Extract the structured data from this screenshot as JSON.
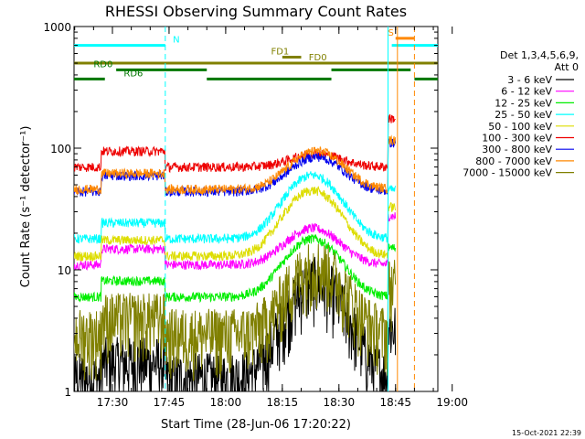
{
  "chart_data": {
    "type": "line",
    "title": "RHESSI Observing Summary Count Rates",
    "xlabel": "Start Time (28-Jun-06 17:20:22)",
    "ylabel": "Count Rate (s⁻¹ detector⁻¹)",
    "yscale": "log",
    "ylim": [
      1,
      1000
    ],
    "xlim_minutes_after_1720": [
      0,
      100
    ],
    "x_tick_labels": [
      "17:30",
      "17:45",
      "18:00",
      "18:15",
      "18:30",
      "18:45",
      "19:00"
    ],
    "x_tick_values_min": [
      10,
      25,
      40,
      55,
      70,
      85,
      100
    ],
    "y_tick_labels": [
      "1",
      "10",
      "100",
      "1000"
    ],
    "y_tick_values": [
      1,
      10,
      100,
      1000
    ],
    "legend_title": [
      "Det 1,3,4,5,6,9,",
      "Att 0"
    ],
    "timestamp": "15-Oct-2021 22:39",
    "series": [
      {
        "name": "3 - 6 keV",
        "color": "#000000",
        "peak_time": 64,
        "peak": 8,
        "base": 1.3
      },
      {
        "name": "6 - 12 keV",
        "color": "#ff00ff",
        "peak_time": 63,
        "peak": 22,
        "base": 11
      },
      {
        "name": "12 - 25 keV",
        "color": "#00ee00",
        "peak_time": 63,
        "peak": 18,
        "base": 6
      },
      {
        "name": "25 - 50 keV",
        "color": "#00ffff",
        "peak_time": 63,
        "peak": 60,
        "base": 18
      },
      {
        "name": "50 - 100 keV",
        "color": "#dddd00",
        "peak_time": 63,
        "peak": 45,
        "base": 13
      },
      {
        "name": "100 - 300 keV",
        "color": "#ee0000",
        "peak_time": 64,
        "peak": 90,
        "base": 70
      },
      {
        "name": "300 - 800 keV",
        "color": "#0000ee",
        "peak_time": 64,
        "peak": 85,
        "base": 44
      },
      {
        "name": "800 - 7000 keV",
        "color": "#ff8800",
        "peak_time": 64,
        "peak": 95,
        "base": 46
      },
      {
        "name": "7000 - 15000 keV",
        "color": "#808000",
        "peak_time": 64,
        "peak": 11,
        "base": 3
      }
    ],
    "flag_bars": [
      {
        "label": "N",
        "color": "#00ffff",
        "value": 700,
        "segments": [
          [
            -2,
            24
          ],
          [
            84,
            98
          ]
        ],
        "label_at": 26
      },
      {
        "label": "S",
        "color": "#ff8800",
        "value": 800,
        "segments": [
          [
            85,
            90
          ]
        ],
        "label_at": 83
      },
      {
        "label": "FD1",
        "color": "#808000",
        "value": 560,
        "segments": [
          [
            55,
            60
          ]
        ],
        "label_at": 52
      },
      {
        "label": "FD0",
        "color": "#808000",
        "value": 500,
        "segments": [
          [
            -2,
            100
          ]
        ],
        "label_at": 62
      },
      {
        "label": "RD0",
        "color": "#007700",
        "value": 440,
        "segments": [
          [
            11,
            35
          ],
          [
            68,
            89
          ]
        ],
        "label_at": 5
      },
      {
        "label": "RD6",
        "color": "#007700",
        "value": 370,
        "segments": [
          [
            -2,
            8
          ],
          [
            35,
            68
          ],
          [
            90,
            98
          ]
        ],
        "label_at": 13
      }
    ],
    "vertical_markers": [
      {
        "color": "#00ffff",
        "time": 24,
        "style": "dashed"
      },
      {
        "color": "#00ffff",
        "time": 83,
        "style": "solid"
      },
      {
        "color": "#ff8800",
        "time": 85.5,
        "style": "solid"
      },
      {
        "color": "#ff8800",
        "time": 90,
        "style": "dashed"
      },
      {
        "color": "#00ffff",
        "time": 98,
        "style": "dashed"
      }
    ]
  }
}
